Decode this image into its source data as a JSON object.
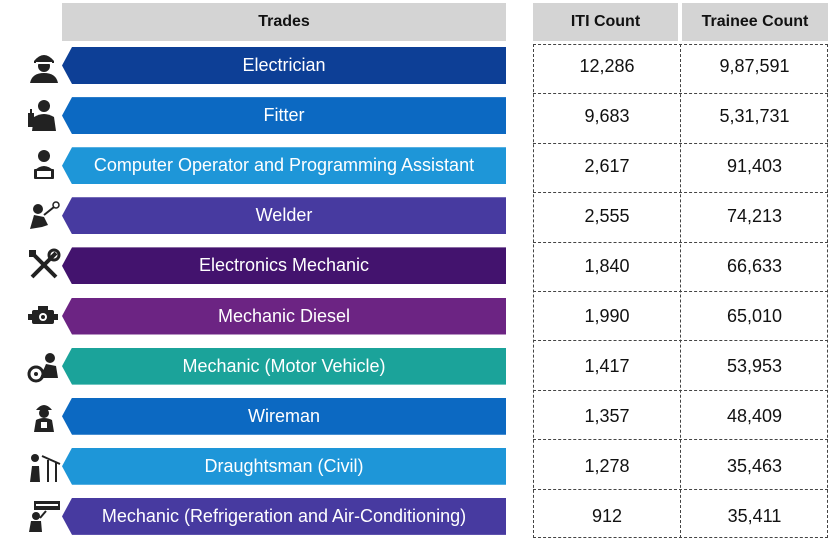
{
  "chart_data": {
    "type": "table",
    "headers": {
      "trades": "Trades",
      "iti_count": "ITI Count",
      "trainee_count": "Trainee Count"
    },
    "rows": [
      {
        "trade": "Electrician",
        "iti_count": "12,286",
        "trainee_count": "9,87,591",
        "color": "#0d3f96",
        "icon": "electrician-icon"
      },
      {
        "trade": "Fitter",
        "iti_count": "9,683",
        "trainee_count": "5,31,731",
        "color": "#0c69c2",
        "icon": "fitter-icon"
      },
      {
        "trade": "Computer Operator and Programming Assistant",
        "iti_count": "2,617",
        "trainee_count": "91,403",
        "color": "#1e96d8",
        "icon": "computer-operator-icon"
      },
      {
        "trade": "Welder",
        "iti_count": "2,555",
        "trainee_count": "74,213",
        "color": "#473aa0",
        "icon": "welder-icon"
      },
      {
        "trade": "Electronics Mechanic",
        "iti_count": "1,840",
        "trainee_count": "66,633",
        "color": "#43136e",
        "icon": "tools-icon"
      },
      {
        "trade": "Mechanic Diesel",
        "iti_count": "1,990",
        "trainee_count": "65,010",
        "color": "#6c2483",
        "icon": "engine-icon"
      },
      {
        "trade": "Mechanic (Motor Vehicle)",
        "iti_count": "1,417",
        "trainee_count": "53,953",
        "color": "#1ba39a",
        "icon": "mechanic-icon"
      },
      {
        "trade": "Wireman",
        "iti_count": "1,357",
        "trainee_count": "48,409",
        "color": "#0c69c2",
        "icon": "wireman-icon"
      },
      {
        "trade": "Draughtsman (Civil)",
        "iti_count": "1,278",
        "trainee_count": "35,463",
        "color": "#1e96d8",
        "icon": "draughtsman-icon"
      },
      {
        "trade": "Mechanic (Refrigeration and Air-Conditioning)",
        "iti_count": "912",
        "trainee_count": "35,411",
        "color": "#473aa0",
        "icon": "ac-mechanic-icon"
      }
    ]
  }
}
